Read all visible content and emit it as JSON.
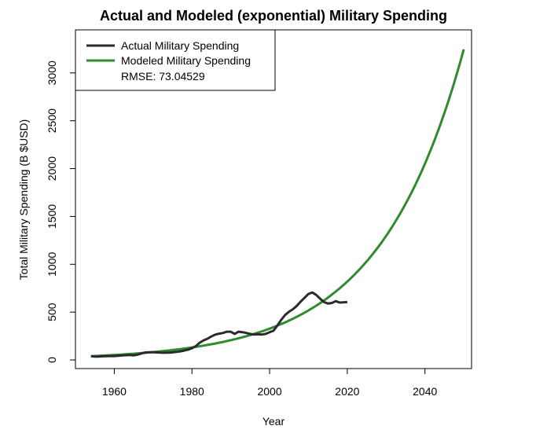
{
  "chart_data": {
    "type": "line",
    "title": "Actual and Modeled (exponential) Military Spending",
    "xlabel": "Year",
    "ylabel": "Total Military Spending (B $USD)",
    "xlim": [
      1950,
      2052
    ],
    "ylim": [
      -90,
      3450
    ],
    "x_ticks": [
      1960,
      1980,
      2000,
      2020,
      2040
    ],
    "y_ticks": [
      0,
      500,
      1000,
      1500,
      2000,
      2500,
      3000
    ],
    "legend_position": "top-left",
    "rmse_label": "RMSE: 73.04529",
    "colors": {
      "actual": "#2b2b2b",
      "modeled": "#2e8b2e"
    },
    "series": [
      {
        "name": "Actual Military Spending",
        "x": [
          1954,
          1955,
          1956,
          1957,
          1958,
          1959,
          1960,
          1961,
          1962,
          1963,
          1964,
          1965,
          1966,
          1967,
          1968,
          1969,
          1970,
          1971,
          1972,
          1973,
          1974,
          1975,
          1976,
          1977,
          1978,
          1979,
          1980,
          1981,
          1982,
          1983,
          1984,
          1985,
          1986,
          1987,
          1988,
          1989,
          1990,
          1991,
          1992,
          1993,
          1994,
          1995,
          1996,
          1997,
          1998,
          1999,
          2000,
          2001,
          2002,
          2003,
          2004,
          2005,
          2006,
          2007,
          2008,
          2009,
          2010,
          2011,
          2012,
          2013,
          2014,
          2015,
          2016,
          2017,
          2018,
          2019,
          2020
        ],
        "values": [
          40,
          36,
          36,
          38,
          40,
          41,
          41,
          44,
          48,
          50,
          51,
          48,
          55,
          68,
          78,
          81,
          80,
          78,
          76,
          75,
          76,
          79,
          84,
          90,
          98,
          108,
          122,
          145,
          180,
          205,
          222,
          245,
          265,
          275,
          282,
          295,
          295,
          272,
          295,
          290,
          282,
          272,
          265,
          268,
          266,
          272,
          290,
          305,
          360,
          420,
          470,
          505,
          530,
          565,
          610,
          650,
          690,
          705,
          680,
          640,
          605,
          590,
          595,
          615,
          600,
          602,
          605
        ]
      },
      {
        "name": "Modeled Military Spending",
        "model": "exponential",
        "a": 39.6,
        "b": 0.0459,
        "x0": 1954,
        "x_start": 1954,
        "x_end": 2050
      }
    ]
  }
}
